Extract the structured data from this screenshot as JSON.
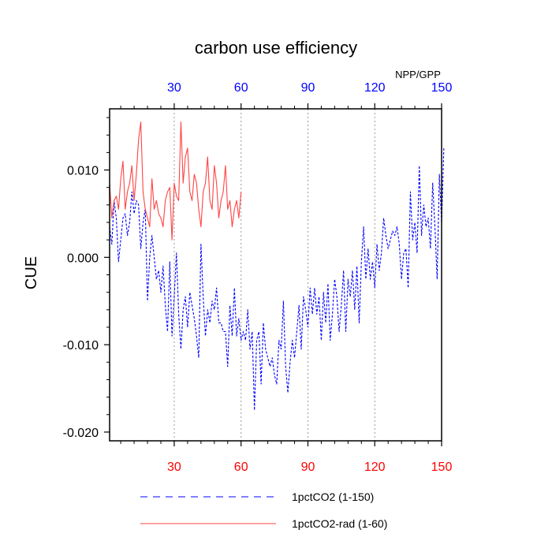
{
  "chart_data": {
    "type": "line",
    "title": "carbon use efficiency",
    "corner_label": "NPP/GPP",
    "ylabel": "CUE",
    "xlabel": "",
    "xlim": [
      1,
      150
    ],
    "ylim": [
      -0.021,
      0.017
    ],
    "x_ticks": [
      30,
      60,
      90,
      120,
      150
    ],
    "x_tick_labels": [
      "30",
      "60",
      "90",
      "120",
      "150"
    ],
    "y_ticks": [
      0.01,
      0.0,
      -0.01,
      -0.02
    ],
    "y_tick_labels": [
      "0.010",
      "0.000",
      "-0.010",
      "-0.020"
    ],
    "y_minor_step": 0.002,
    "x_minor_step": 6,
    "grid": "vertical dotted at major x ticks",
    "colors": {
      "bottom_tick_labels": "#ff0000",
      "top_tick_labels": "#0000ff",
      "grid": "#999999"
    },
    "legend_position": "bottom-center",
    "series": [
      {
        "name": "1pctCO2 (1-150)",
        "color": "#0000ff",
        "dash": "dashed",
        "x_start": 1,
        "values": [
          0.0035,
          0.0015,
          0.0065,
          0.0045,
          -0.0005,
          0.002,
          0.0045,
          0.005,
          0.0025,
          0.004,
          0.0075,
          0.005,
          0.0065,
          0.006,
          0.001,
          0.004,
          0.0055,
          -0.005,
          0.0,
          0.0025,
          0.0,
          -0.0025,
          -0.0015,
          -0.004,
          -0.001,
          -0.0055,
          -0.0085,
          -0.0005,
          -0.009,
          -0.0045,
          0.0005,
          -0.0065,
          -0.0105,
          -0.006,
          -0.0045,
          -0.008,
          -0.004,
          -0.0055,
          -0.007,
          -0.009,
          -0.0115,
          0.0015,
          -0.0045,
          -0.009,
          -0.006,
          -0.0075,
          -0.005,
          -0.006,
          -0.0035,
          -0.0075,
          -0.0075,
          -0.0085,
          -0.0085,
          -0.0125,
          -0.0055,
          -0.009,
          -0.0035,
          -0.009,
          -0.007,
          -0.0095,
          -0.0085,
          -0.0095,
          -0.006,
          -0.0105,
          -0.0085,
          -0.0175,
          -0.0095,
          -0.0085,
          -0.0145,
          -0.0075,
          -0.0105,
          -0.0115,
          -0.0125,
          -0.0115,
          -0.0135,
          -0.0145,
          -0.0095,
          -0.0105,
          -0.005,
          -0.0125,
          -0.0155,
          -0.012,
          -0.0095,
          -0.0115,
          -0.0085,
          -0.0055,
          -0.0105,
          -0.0045,
          -0.006,
          -0.008,
          -0.0035,
          -0.0065,
          -0.0035,
          -0.0065,
          -0.0045,
          -0.0095,
          -0.004,
          -0.0075,
          -0.003,
          -0.0095,
          -0.0065,
          -0.0025,
          -0.0045,
          -0.0085,
          -0.0055,
          -0.0015,
          -0.0085,
          -0.0025,
          -0.0045,
          -0.0015,
          -0.006,
          -0.001,
          -0.0075,
          -0.0005,
          0.0035,
          -0.0025,
          0.001,
          -0.0025,
          -0.0005,
          -0.0035,
          0.0015,
          -0.0015,
          0.0005,
          0.0045,
          0.0025,
          0.001,
          0.002,
          0.003,
          0.0025,
          0.0035,
          0.0015,
          -0.0025,
          0.0005,
          0.001,
          -0.0035,
          0.0075,
          0.002,
          0.004,
          0.0005,
          0.0105,
          0.0025,
          0.006,
          0.0035,
          0.0045,
          0.001,
          0.0085,
          0.0035,
          -0.0025,
          0.0095,
          0.004,
          0.0125
        ]
      },
      {
        "name": "1pctCO2-rad (1-60)",
        "color": "#ff4444",
        "dash": "solid",
        "x_start": 1,
        "values": [
          0.0085,
          0.0045,
          0.0065,
          0.007,
          0.0055,
          0.009,
          0.011,
          0.0055,
          0.0075,
          0.0085,
          0.0105,
          0.0065,
          0.0095,
          0.0135,
          0.0155,
          0.0075,
          0.0055,
          0.0045,
          0.0035,
          0.009,
          0.0055,
          0.0065,
          0.005,
          0.0045,
          0.0035,
          0.0065,
          0.0075,
          0.008,
          0.002,
          0.0085,
          0.007,
          0.0065,
          0.0155,
          0.0085,
          0.0115,
          0.0125,
          0.0075,
          0.0065,
          0.0095,
          0.0085,
          0.0055,
          0.0035,
          0.0075,
          0.0085,
          0.0115,
          0.0065,
          0.0055,
          0.0105,
          0.0085,
          0.0045,
          0.0065,
          0.0075,
          0.0105,
          0.0055,
          0.0065,
          0.0035,
          0.0055,
          0.0065,
          0.0045,
          0.0075
        ]
      }
    ]
  }
}
